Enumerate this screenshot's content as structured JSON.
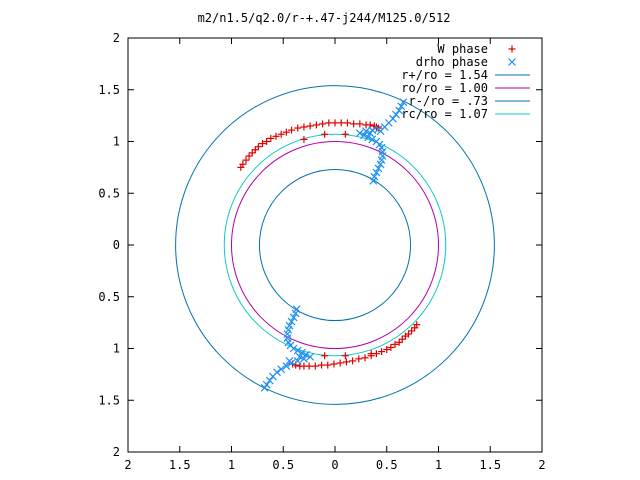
{
  "chart_data": {
    "type": "scatter",
    "title": "m2/n1.5/q2.0/r-+.47-j244/M125.0/512",
    "xlabel": "",
    "ylabel": "",
    "xlim": [
      -2,
      2
    ],
    "ylim": [
      -2,
      2
    ],
    "x_tick_labels": [
      "2",
      "1.5",
      "1",
      "0.5",
      "0",
      "0.5",
      "1",
      "1.5",
      "2"
    ],
    "y_tick_labels": [
      "2",
      "1.5",
      "1",
      "0.5",
      "0",
      "0.5",
      "1",
      "1.5",
      "2"
    ],
    "grid": false,
    "legend_position": "top-right",
    "circles": [
      {
        "name": "r+/ro = 1.54",
        "radius": 1.54,
        "color": "#0072b2"
      },
      {
        "name": "ro/ro = 1.00",
        "radius": 1.0,
        "color": "#b000b0"
      },
      {
        "name": "r-/ro = .73",
        "radius": 0.73,
        "color": "#0072b2"
      },
      {
        "name": "rc/ro = 1.07",
        "radius": 1.07,
        "color": "#10c8c8"
      }
    ],
    "series": [
      {
        "name": "W phase",
        "marker": "plus",
        "color": "#e00000",
        "points": [
          [
            -0.91,
            0.75
          ],
          [
            -0.89,
            0.78
          ],
          [
            -0.86,
            0.82
          ],
          [
            -0.83,
            0.86
          ],
          [
            -0.8,
            0.89
          ],
          [
            -0.77,
            0.92
          ],
          [
            -0.74,
            0.95
          ],
          [
            -0.7,
            0.98
          ],
          [
            -0.66,
            1.0
          ],
          [
            -0.62,
            1.03
          ],
          [
            -0.57,
            1.05
          ],
          [
            -0.52,
            1.07
          ],
          [
            -0.47,
            1.09
          ],
          [
            -0.42,
            1.11
          ],
          [
            -0.36,
            1.13
          ],
          [
            -0.3,
            1.14
          ],
          [
            -0.24,
            1.15
          ],
          [
            -0.18,
            1.16
          ],
          [
            -0.12,
            1.17
          ],
          [
            -0.06,
            1.18
          ],
          [
            0.0,
            1.18
          ],
          [
            0.06,
            1.18
          ],
          [
            0.12,
            1.18
          ],
          [
            0.18,
            1.17
          ],
          [
            0.24,
            1.17
          ],
          [
            0.3,
            1.16
          ],
          [
            0.34,
            1.16
          ],
          [
            0.38,
            1.15
          ],
          [
            0.4,
            1.14
          ],
          [
            0.42,
            1.13
          ],
          [
            -0.3,
            1.02
          ],
          [
            -0.1,
            1.07
          ],
          [
            0.1,
            1.07
          ],
          [
            0.79,
            -0.77
          ],
          [
            0.77,
            -0.8
          ],
          [
            0.74,
            -0.83
          ],
          [
            0.71,
            -0.86
          ],
          [
            0.68,
            -0.88
          ],
          [
            0.65,
            -0.91
          ],
          [
            0.62,
            -0.94
          ],
          [
            0.58,
            -0.96
          ],
          [
            0.54,
            -0.99
          ],
          [
            0.5,
            -1.01
          ],
          [
            0.45,
            -1.03
          ],
          [
            0.4,
            -1.05
          ],
          [
            0.35,
            -1.07
          ],
          [
            0.29,
            -1.09
          ],
          [
            0.23,
            -1.1
          ],
          [
            0.17,
            -1.12
          ],
          [
            0.11,
            -1.13
          ],
          [
            0.05,
            -1.14
          ],
          [
            -0.01,
            -1.15
          ],
          [
            -0.07,
            -1.16
          ],
          [
            -0.13,
            -1.16
          ],
          [
            -0.19,
            -1.17
          ],
          [
            -0.25,
            -1.17
          ],
          [
            -0.3,
            -1.17
          ],
          [
            -0.34,
            -1.17
          ],
          [
            -0.38,
            -1.16
          ],
          [
            -0.41,
            -1.15
          ],
          [
            0.35,
            -1.05
          ],
          [
            0.1,
            -1.07
          ],
          [
            -0.1,
            -1.07
          ]
        ]
      },
      {
        "name": "drho phase",
        "marker": "cross",
        "color": "#1e8fef",
        "points": [
          [
            0.37,
            0.62
          ],
          [
            0.38,
            0.66
          ],
          [
            0.4,
            0.7
          ],
          [
            0.42,
            0.74
          ],
          [
            0.44,
            0.78
          ],
          [
            0.45,
            0.82
          ],
          [
            0.46,
            0.86
          ],
          [
            0.46,
            0.9
          ],
          [
            0.45,
            0.94
          ],
          [
            0.43,
            0.97
          ],
          [
            0.4,
            1.0
          ],
          [
            0.36,
            1.02
          ],
          [
            0.32,
            1.04
          ],
          [
            0.28,
            1.06
          ],
          [
            0.24,
            1.08
          ],
          [
            0.3,
            1.1
          ],
          [
            0.36,
            1.11
          ],
          [
            0.42,
            1.12
          ],
          [
            0.48,
            1.14
          ],
          [
            0.52,
            1.18
          ],
          [
            0.56,
            1.22
          ],
          [
            0.59,
            1.26
          ],
          [
            0.62,
            1.3
          ],
          [
            0.64,
            1.34
          ],
          [
            0.66,
            1.38
          ],
          [
            0.34,
            1.08
          ],
          [
            0.44,
            1.1
          ],
          [
            -0.37,
            -0.62
          ],
          [
            -0.38,
            -0.66
          ],
          [
            -0.4,
            -0.7
          ],
          [
            -0.42,
            -0.74
          ],
          [
            -0.44,
            -0.78
          ],
          [
            -0.45,
            -0.82
          ],
          [
            -0.46,
            -0.86
          ],
          [
            -0.46,
            -0.9
          ],
          [
            -0.45,
            -0.94
          ],
          [
            -0.43,
            -0.97
          ],
          [
            -0.4,
            -1.0
          ],
          [
            -0.36,
            -1.02
          ],
          [
            -0.32,
            -1.04
          ],
          [
            -0.28,
            -1.06
          ],
          [
            -0.24,
            -1.08
          ],
          [
            -0.3,
            -1.1
          ],
          [
            -0.36,
            -1.12
          ],
          [
            -0.42,
            -1.14
          ],
          [
            -0.47,
            -1.17
          ],
          [
            -0.52,
            -1.2
          ],
          [
            -0.56,
            -1.23
          ],
          [
            -0.6,
            -1.27
          ],
          [
            -0.63,
            -1.31
          ],
          [
            -0.66,
            -1.35
          ],
          [
            -0.68,
            -1.38
          ],
          [
            -0.34,
            -1.08
          ],
          [
            -0.44,
            -1.12
          ]
        ]
      }
    ]
  }
}
